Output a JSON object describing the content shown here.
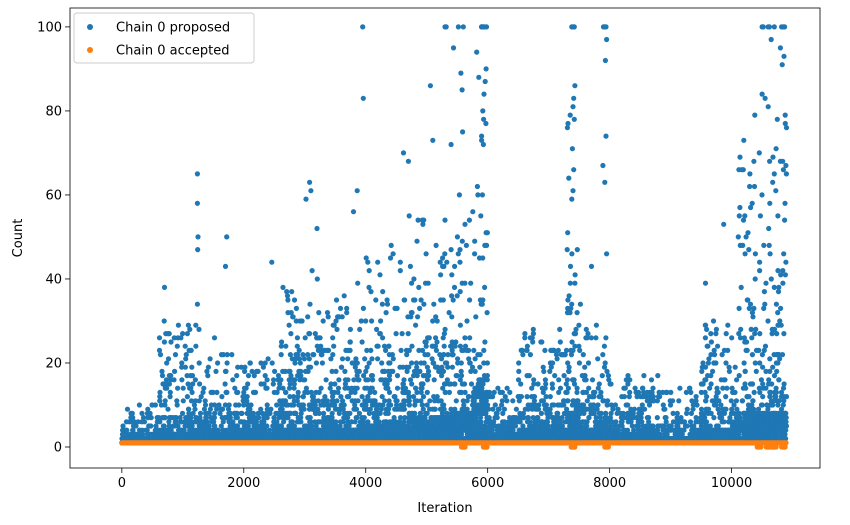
{
  "chart_data": {
    "type": "scatter",
    "xlabel": "Iteration",
    "ylabel": "Count",
    "xlim": [
      -850,
      11450
    ],
    "ylim": [
      -5,
      104.5
    ],
    "x_ticks": [
      0,
      2000,
      4000,
      6000,
      8000,
      10000
    ],
    "y_ticks": [
      0,
      20,
      40,
      60,
      80,
      100
    ],
    "grid": false,
    "legend_position": "top-left",
    "colors": {
      "proposed": "#1f77b4",
      "accepted": "#ff7f0e"
    },
    "series": [
      {
        "name": "Chain 0 proposed",
        "color": "#1f77b4",
        "regimes": [
          {
            "x": [
              0,
              600
            ],
            "base": 1.5,
            "spread": 1.8,
            "peak": 10
          },
          {
            "x": [
              600,
              1300
            ],
            "base": 2.5,
            "spread": 4,
            "peak": 30
          },
          {
            "x": [
              1300,
              1900
            ],
            "base": 2.5,
            "spread": 4,
            "peak": 24
          },
          {
            "x": [
              1900,
              2600
            ],
            "base": 2,
            "spread": 4,
            "peak": 20
          },
          {
            "x": [
              2600,
              3300
            ],
            "base": 3,
            "spread": 7,
            "peak": 38
          },
          {
            "x": [
              3300,
              4000
            ],
            "base": 3,
            "spread": 7,
            "peak": 36
          },
          {
            "x": [
              4000,
              4700
            ],
            "base": 4,
            "spread": 9,
            "peak": 48
          },
          {
            "x": [
              4700,
              5400
            ],
            "base": 5,
            "spread": 11,
            "peak": 55
          },
          {
            "x": [
              5400,
              5850
            ],
            "base": 6,
            "spread": 14,
            "peak": 62
          },
          {
            "x": [
              5850,
              6000
            ],
            "base": 12,
            "spread": 22,
            "peak": 100
          },
          {
            "x": [
              6000,
              6500
            ],
            "base": 1.5,
            "spread": 2.5,
            "peak": 14
          },
          {
            "x": [
              6500,
              7300
            ],
            "base": 3,
            "spread": 6,
            "peak": 28
          },
          {
            "x": [
              7300,
              7500
            ],
            "base": 6,
            "spread": 12,
            "peak": 85
          },
          {
            "x": [
              7500,
              8000
            ],
            "base": 3,
            "spread": 7,
            "peak": 30
          },
          {
            "x": [
              8000,
              8600
            ],
            "base": 2,
            "spread": 3,
            "peak": 18
          },
          {
            "x": [
              8600,
              9500
            ],
            "base": 1.5,
            "spread": 2.5,
            "peak": 14
          },
          {
            "x": [
              9500,
              10100
            ],
            "base": 3,
            "spread": 6,
            "peak": 30
          },
          {
            "x": [
              10100,
              10900
            ],
            "base": 6,
            "spread": 14,
            "peak": 70
          }
        ],
        "outliers": [
          [
            1240,
            65
          ],
          [
            1240,
            58
          ],
          [
            1250,
            50
          ],
          [
            1245,
            47
          ],
          [
            1720,
            50
          ],
          [
            1700,
            43
          ],
          [
            1240,
            34
          ],
          [
            700,
            38
          ],
          [
            2460,
            44
          ],
          [
            3080,
            63
          ],
          [
            3020,
            59
          ],
          [
            3100,
            61
          ],
          [
            3200,
            52
          ],
          [
            3860,
            61
          ],
          [
            3950,
            100
          ],
          [
            3960,
            83
          ],
          [
            3800,
            56
          ],
          [
            4620,
            70
          ],
          [
            4700,
            68
          ],
          [
            5100,
            73
          ],
          [
            5060,
            86
          ],
          [
            5300,
            100
          ],
          [
            5320,
            100
          ],
          [
            5520,
            100
          ],
          [
            5560,
            89
          ],
          [
            5600,
            100
          ],
          [
            5440,
            95
          ],
          [
            5400,
            72
          ],
          [
            5580,
            85
          ],
          [
            5820,
            94
          ],
          [
            5900,
            100
          ],
          [
            5910,
            100
          ],
          [
            5930,
            100
          ],
          [
            5950,
            100
          ],
          [
            5980,
            100
          ],
          [
            5960,
            87
          ],
          [
            5940,
            84
          ],
          [
            5920,
            80
          ],
          [
            5970,
            77
          ],
          [
            5900,
            73
          ],
          [
            7400,
            100
          ],
          [
            7420,
            100
          ],
          [
            7380,
            100
          ],
          [
            7430,
            86
          ],
          [
            7410,
            83
          ],
          [
            7400,
            81
          ],
          [
            7420,
            78
          ],
          [
            7390,
            71
          ],
          [
            7410,
            66
          ],
          [
            7900,
            100
          ],
          [
            7920,
            100
          ],
          [
            7940,
            100
          ],
          [
            7950,
            97
          ],
          [
            7930,
            92
          ],
          [
            7940,
            74
          ],
          [
            7890,
            67
          ],
          [
            7920,
            63
          ],
          [
            7950,
            46
          ],
          [
            7380,
            59
          ],
          [
            7400,
            61
          ],
          [
            10380,
            79
          ],
          [
            10500,
            100
          ],
          [
            10520,
            100
          ],
          [
            10600,
            100
          ],
          [
            10620,
            100
          ],
          [
            10650,
            97
          ],
          [
            10700,
            100
          ],
          [
            10820,
            100
          ],
          [
            10850,
            100
          ],
          [
            10870,
            100
          ],
          [
            10800,
            95
          ],
          [
            10830,
            91
          ],
          [
            10860,
            93
          ],
          [
            10500,
            84
          ],
          [
            10550,
            83
          ],
          [
            10600,
            81
          ],
          [
            10750,
            78
          ],
          [
            10880,
            79
          ],
          [
            10900,
            76
          ],
          [
            9870,
            53
          ],
          [
            10200,
            73
          ],
          [
            10300,
            65
          ],
          [
            10700,
            65
          ],
          [
            10800,
            68
          ],
          [
            10850,
            66
          ],
          [
            10890,
            67
          ]
        ]
      },
      {
        "name": "Chain 0 accepted",
        "color": "#ff7f0e",
        "value": 1,
        "dips": [
          [
            5600,
            0
          ],
          [
            5960,
            0
          ],
          [
            7400,
            0
          ],
          [
            7950,
            0
          ],
          [
            10450,
            0
          ],
          [
            10600,
            0
          ],
          [
            10700,
            0
          ],
          [
            10850,
            0
          ]
        ]
      }
    ]
  }
}
